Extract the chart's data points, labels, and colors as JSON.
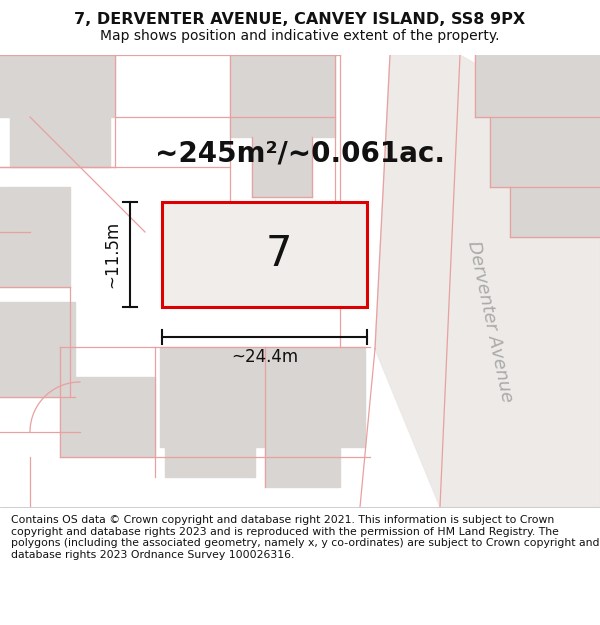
{
  "title_line1": "7, DERVENTER AVENUE, CANVEY ISLAND, SS8 9PX",
  "title_line2": "Map shows position and indicative extent of the property.",
  "footer_text": "Contains OS data © Crown copyright and database right 2021. This information is subject to Crown copyright and database rights 2023 and is reproduced with the permission of HM Land Registry. The polygons (including the associated geometry, namely x, y co-ordinates) are subject to Crown copyright and database rights 2023 Ordnance Survey 100026316.",
  "bg_color": "#f7f4f2",
  "block_color": "#d8d5d2",
  "road_fill": "#ede8e5",
  "line_color": "#e8a0a0",
  "property_border": "#dd0000",
  "road_label": "Derventer Avenue",
  "property_number": "7",
  "area_text": "~245m²/~0.061ac.",
  "width_text": "~24.4m",
  "height_text": "~11.5m",
  "title_fontsize": 11.5,
  "subtitle_fontsize": 10,
  "footer_fontsize": 7.8,
  "label_fontsize": 12,
  "area_fontsize": 20,
  "prop_num_fontsize": 30,
  "road_label_fontsize": 13
}
